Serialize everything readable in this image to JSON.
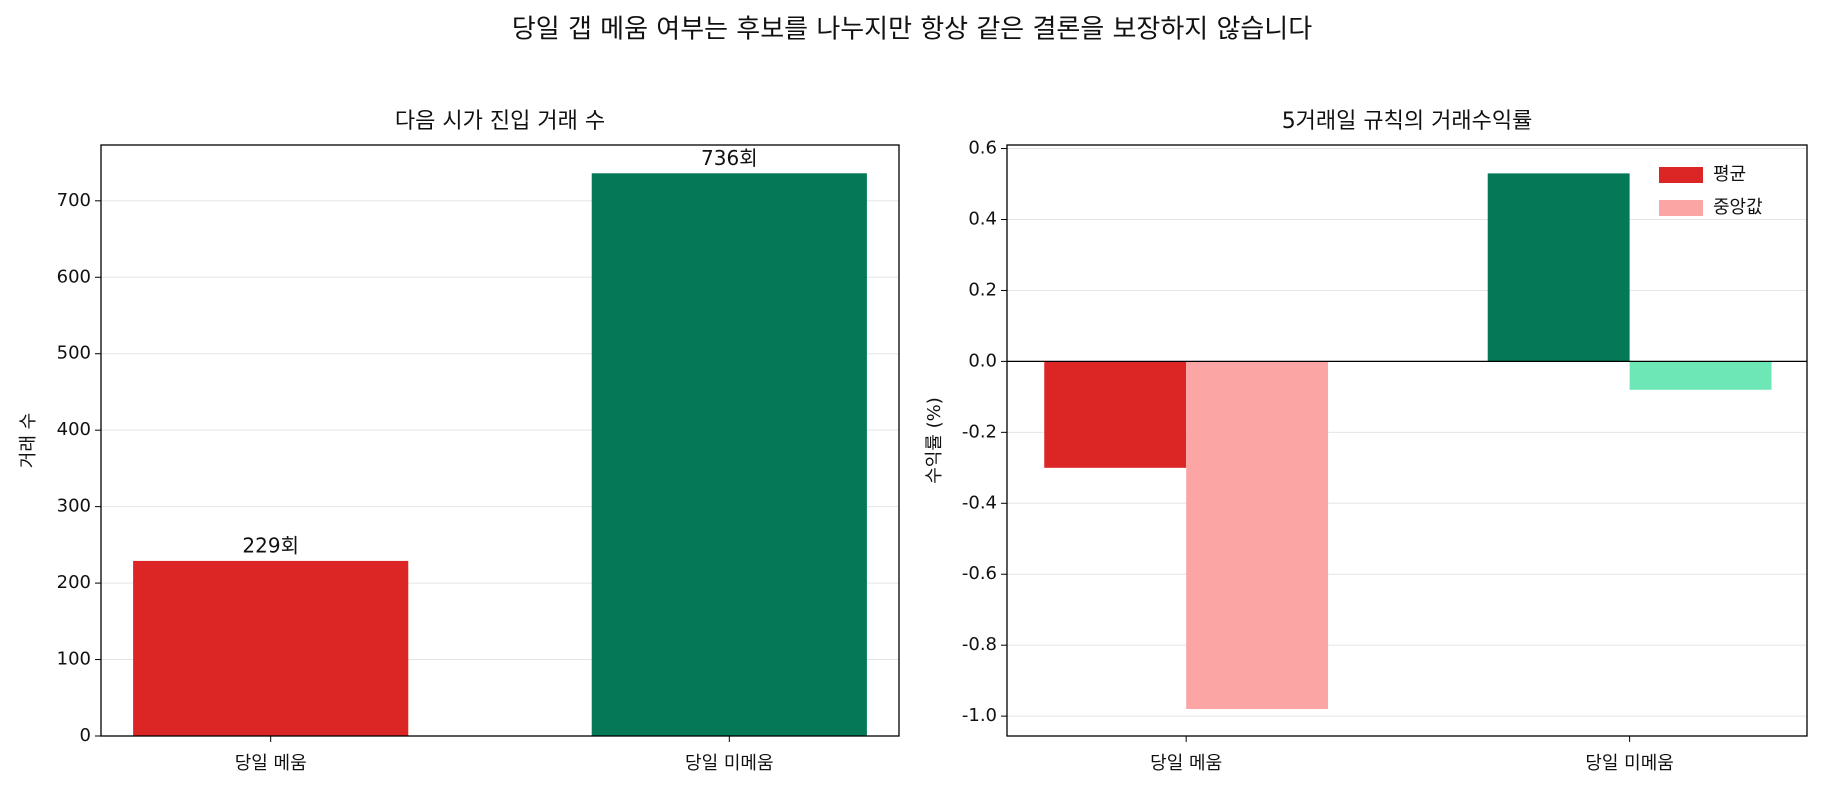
{
  "title": "당일 갭 메움 여부는 후보를 나누지만 항상 같은 결론을 보장하지 않습니다",
  "chart_data": [
    {
      "type": "bar",
      "title": "다음 시가 진입 거래 수",
      "y_label": "거래 수",
      "categories": [
        "당일 메움",
        "당일 미메움"
      ],
      "values": [
        229,
        736
      ],
      "value_labels": [
        "229회",
        "736회"
      ],
      "colors": [
        "#dc2626",
        "#047857"
      ],
      "ylim": [
        0,
        773
      ],
      "yticks": [
        0,
        100,
        200,
        300,
        400,
        500,
        600,
        700
      ],
      "grid": true
    },
    {
      "type": "grouped_bar",
      "title": "5거래일 규칙의 거래수익률",
      "y_label": "수익률 (%)",
      "categories": [
        "당일 메움",
        "당일 미메움"
      ],
      "series": [
        {
          "name": "평균",
          "color": "#dc2626",
          "colors": [
            "#dc2626",
            "#047857"
          ],
          "values": [
            -0.3,
            0.53
          ]
        },
        {
          "name": "중앙값",
          "color": "#fca5a5",
          "colors": [
            "#fca5a5",
            "#6ee7b7"
          ],
          "values": [
            -0.98,
            -0.08
          ]
        }
      ],
      "ylim": [
        -1.056,
        0.61
      ],
      "yticks": [
        {
          "value": -1.0,
          "label": "-1.0"
        },
        -0.8,
        -0.6,
        -0.4,
        -0.2,
        {
          "value": 0,
          "label": "0.0"
        },
        0.2,
        0.4,
        0.6
      ],
      "grid": true,
      "legend": "upper right"
    }
  ]
}
